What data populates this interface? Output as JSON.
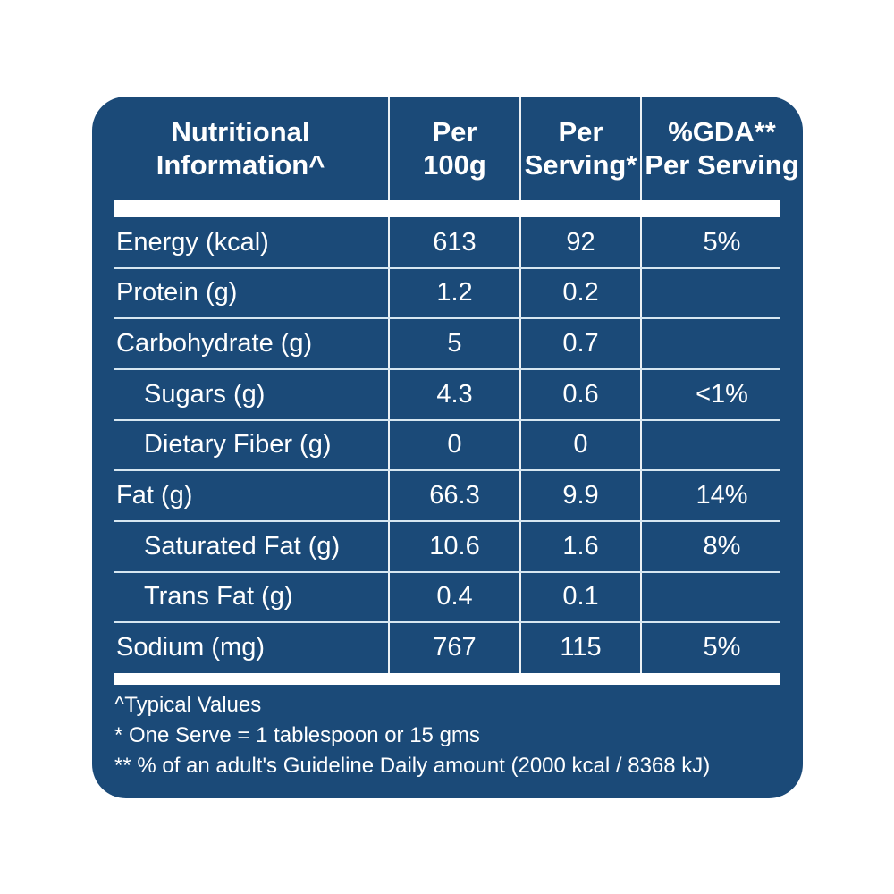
{
  "colors": {
    "panel_bg": "#1B4A78",
    "text": "#FFFFFF",
    "thick_band": "#FFFFFF",
    "row_line": "#D7E7F1"
  },
  "table": {
    "header": {
      "columns": [
        {
          "line1": "Nutritional",
          "line2": "Information^"
        },
        {
          "line1": "Per",
          "line2": "100g"
        },
        {
          "line1": "Per",
          "line2": "Serving*"
        },
        {
          "line1": "%GDA**",
          "line2": "Per Serving"
        }
      ]
    },
    "rows": [
      {
        "label": "Energy (kcal)",
        "per_100g": "613",
        "per_serving": "92",
        "gda": "5%"
      },
      {
        "label": "Protein (g)",
        "per_100g": "1.2",
        "per_serving": "0.2",
        "gda": ""
      },
      {
        "label": "Carbohydrate (g)",
        "per_100g": "5",
        "per_serving": "0.7",
        "gda": ""
      },
      {
        "label": "Sugars (g)",
        "per_100g": "4.3",
        "per_serving": "0.6",
        "gda": "<1%"
      },
      {
        "label": "Dietary Fiber (g)",
        "per_100g": "0",
        "per_serving": "0",
        "gda": ""
      },
      {
        "label": "Fat (g)",
        "per_100g": "66.3",
        "per_serving": "9.9",
        "gda": "14%"
      },
      {
        "label": "Saturated Fat (g)",
        "per_100g": "10.6",
        "per_serving": "1.6",
        "gda": "8%"
      },
      {
        "label": "Trans Fat (g)",
        "per_100g": "0.4",
        "per_serving": "0.1",
        "gda": ""
      },
      {
        "label": "Sodium (mg)",
        "per_100g": "767",
        "per_serving": "115",
        "gda": "5%"
      }
    ]
  },
  "footnotes": [
    "^Typical Values",
    "* One Serve = 1 tablespoon or 15 gms",
    "** % of an adult's Guideline Daily amount (2000 kcal / 8368 kJ)"
  ]
}
